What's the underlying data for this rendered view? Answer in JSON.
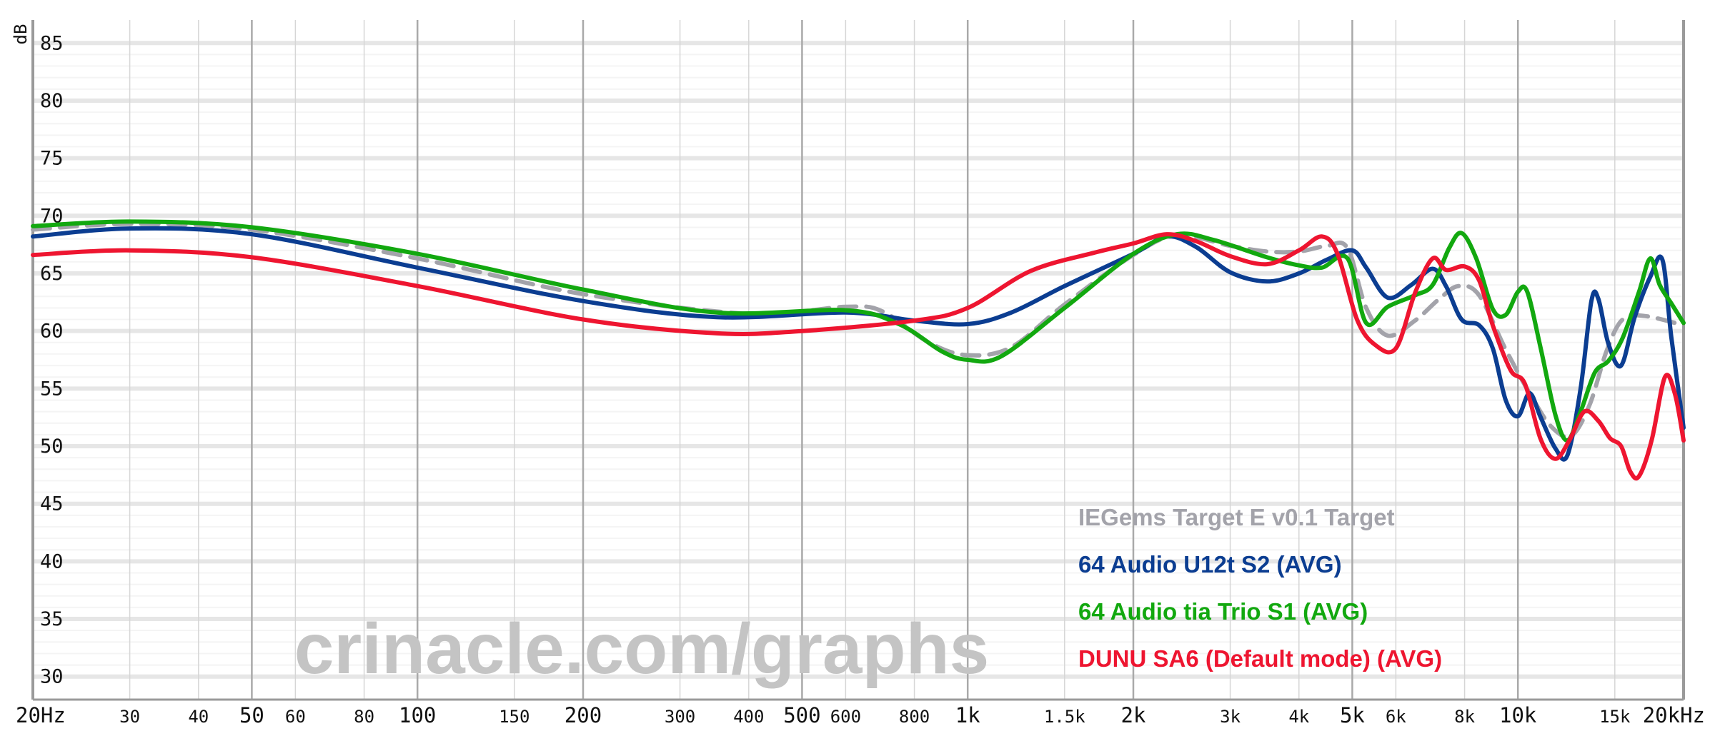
{
  "chart_data": {
    "type": "line",
    "ylabel": "dB",
    "xscale": "log",
    "xlim": [
      20,
      20000
    ],
    "ylim": [
      28,
      87
    ],
    "y_ticks": [
      85,
      80,
      75,
      70,
      65,
      60,
      55,
      50,
      45,
      40,
      35,
      30
    ],
    "x_ticks": [
      {
        "value": 20,
        "label": "20Hz",
        "major": true
      },
      {
        "value": 30,
        "label": "30",
        "major": false
      },
      {
        "value": 40,
        "label": "40",
        "major": false
      },
      {
        "value": 50,
        "label": "50",
        "major": true
      },
      {
        "value": 60,
        "label": "60",
        "major": false
      },
      {
        "value": 80,
        "label": "80",
        "major": false
      },
      {
        "value": 100,
        "label": "100",
        "major": true
      },
      {
        "value": 150,
        "label": "150",
        "major": false
      },
      {
        "value": 200,
        "label": "200",
        "major": true
      },
      {
        "value": 300,
        "label": "300",
        "major": false
      },
      {
        "value": 400,
        "label": "400",
        "major": false
      },
      {
        "value": 500,
        "label": "500",
        "major": true
      },
      {
        "value": 600,
        "label": "600",
        "major": false
      },
      {
        "value": 800,
        "label": "800",
        "major": false
      },
      {
        "value": 1000,
        "label": "1k",
        "major": true
      },
      {
        "value": 1500,
        "label": "1.5k",
        "major": false
      },
      {
        "value": 2000,
        "label": "2k",
        "major": true
      },
      {
        "value": 3000,
        "label": "3k",
        "major": false
      },
      {
        "value": 4000,
        "label": "4k",
        "major": false
      },
      {
        "value": 5000,
        "label": "5k",
        "major": true
      },
      {
        "value": 6000,
        "label": "6k",
        "major": false
      },
      {
        "value": 8000,
        "label": "8k",
        "major": false
      },
      {
        "value": 10000,
        "label": "10k",
        "major": true
      },
      {
        "value": 15000,
        "label": "15k",
        "major": false
      },
      {
        "value": 20000,
        "label": "20kHz",
        "major": true
      }
    ],
    "legend_position": "bottom-right",
    "watermark": "crinacle.com/graphs",
    "series": [
      {
        "name": "IEGems Target E v0.1 Target",
        "color": "#a3a3aa",
        "dashed": true,
        "points": [
          [
            20,
            68.8
          ],
          [
            30,
            69.3
          ],
          [
            50,
            68.8
          ],
          [
            100,
            66.3
          ],
          [
            200,
            63.2
          ],
          [
            400,
            61.5
          ],
          [
            600,
            62.1
          ],
          [
            700,
            61.7
          ],
          [
            850,
            59.0
          ],
          [
            1000,
            57.9
          ],
          [
            1200,
            58.6
          ],
          [
            1500,
            62.3
          ],
          [
            2000,
            66.6
          ],
          [
            2400,
            68.3
          ],
          [
            3000,
            67.4
          ],
          [
            3500,
            66.9
          ],
          [
            4000,
            66.9
          ],
          [
            4500,
            67.4
          ],
          [
            4900,
            67.2
          ],
          [
            5300,
            62.0
          ],
          [
            5800,
            59.6
          ],
          [
            6500,
            60.9
          ],
          [
            7200,
            62.8
          ],
          [
            7800,
            63.9
          ],
          [
            8500,
            63.1
          ],
          [
            9500,
            58.4
          ],
          [
            10500,
            54.6
          ],
          [
            11500,
            51.7
          ],
          [
            12500,
            50.9
          ],
          [
            13500,
            53.6
          ],
          [
            14500,
            58.3
          ],
          [
            15500,
            61.0
          ],
          [
            17000,
            61.3
          ],
          [
            20000,
            60.5
          ]
        ]
      },
      {
        "name": "64 Audio U12t S2 (AVG)",
        "color": "#0b3d91",
        "dashed": false,
        "points": [
          [
            20,
            68.2
          ],
          [
            30,
            68.9
          ],
          [
            50,
            68.4
          ],
          [
            100,
            65.5
          ],
          [
            200,
            62.6
          ],
          [
            350,
            61.2
          ],
          [
            600,
            61.6
          ],
          [
            800,
            60.9
          ],
          [
            1000,
            60.6
          ],
          [
            1200,
            61.6
          ],
          [
            1500,
            63.9
          ],
          [
            2000,
            66.7
          ],
          [
            2300,
            68.2
          ],
          [
            2600,
            67.3
          ],
          [
            3000,
            65.1
          ],
          [
            3500,
            64.3
          ],
          [
            4000,
            65.0
          ],
          [
            4500,
            66.2
          ],
          [
            5000,
            67.0
          ],
          [
            5300,
            65.5
          ],
          [
            5800,
            62.9
          ],
          [
            6400,
            64.0
          ],
          [
            7000,
            65.4
          ],
          [
            7400,
            63.9
          ],
          [
            7900,
            61.0
          ],
          [
            8500,
            60.5
          ],
          [
            9000,
            58.5
          ],
          [
            9500,
            54.0
          ],
          [
            10000,
            52.6
          ],
          [
            10500,
            54.6
          ],
          [
            11000,
            52.5
          ],
          [
            11700,
            49.8
          ],
          [
            12300,
            49.2
          ],
          [
            13000,
            55.0
          ],
          [
            13600,
            62.6
          ],
          [
            14000,
            62.8
          ],
          [
            14600,
            58.9
          ],
          [
            15400,
            57.0
          ],
          [
            16300,
            61.2
          ],
          [
            17400,
            64.7
          ],
          [
            18300,
            66.2
          ],
          [
            19000,
            59.5
          ],
          [
            20000,
            51.6
          ]
        ]
      },
      {
        "name": "64 Audio tia Trio S1 (AVG)",
        "color": "#12a80f",
        "dashed": false,
        "points": [
          [
            20,
            69.1
          ],
          [
            30,
            69.5
          ],
          [
            50,
            69.0
          ],
          [
            100,
            66.7
          ],
          [
            200,
            63.6
          ],
          [
            350,
            61.6
          ],
          [
            600,
            61.8
          ],
          [
            750,
            60.6
          ],
          [
            900,
            58.2
          ],
          [
            1000,
            57.5
          ],
          [
            1150,
            57.8
          ],
          [
            1500,
            62.0
          ],
          [
            2000,
            66.7
          ],
          [
            2400,
            68.4
          ],
          [
            2800,
            67.9
          ],
          [
            3500,
            66.4
          ],
          [
            4000,
            65.7
          ],
          [
            4400,
            65.5
          ],
          [
            4900,
            66.3
          ],
          [
            5300,
            60.7
          ],
          [
            5800,
            62.1
          ],
          [
            6500,
            63.1
          ],
          [
            7000,
            64.0
          ],
          [
            7500,
            67.2
          ],
          [
            7900,
            68.5
          ],
          [
            8400,
            66.3
          ],
          [
            9000,
            61.9
          ],
          [
            9500,
            61.4
          ],
          [
            10000,
            63.4
          ],
          [
            10400,
            63.4
          ],
          [
            11000,
            58.5
          ],
          [
            11700,
            52.7
          ],
          [
            12300,
            50.5
          ],
          [
            13000,
            53.0
          ],
          [
            13800,
            56.4
          ],
          [
            14600,
            57.4
          ],
          [
            15500,
            59.4
          ],
          [
            16600,
            63.4
          ],
          [
            17400,
            66.3
          ],
          [
            18100,
            64.0
          ],
          [
            19000,
            62.4
          ],
          [
            20000,
            60.7
          ]
        ]
      },
      {
        "name": "DUNU SA6 (Default mode) (AVG)",
        "color": "#ee1530",
        "dashed": false,
        "points": [
          [
            20,
            66.6
          ],
          [
            30,
            67.0
          ],
          [
            50,
            66.4
          ],
          [
            100,
            63.9
          ],
          [
            200,
            61.0
          ],
          [
            350,
            59.8
          ],
          [
            500,
            60.0
          ],
          [
            800,
            60.9
          ],
          [
            1000,
            62.0
          ],
          [
            1300,
            65.2
          ],
          [
            1700,
            66.8
          ],
          [
            2000,
            67.6
          ],
          [
            2300,
            68.4
          ],
          [
            2600,
            67.8
          ],
          [
            3000,
            66.5
          ],
          [
            3500,
            65.8
          ],
          [
            4000,
            67.0
          ],
          [
            4400,
            68.2
          ],
          [
            4700,
            66.7
          ],
          [
            5100,
            61.0
          ],
          [
            5500,
            58.8
          ],
          [
            6000,
            58.5
          ],
          [
            6500,
            63.3
          ],
          [
            7000,
            66.3
          ],
          [
            7400,
            65.3
          ],
          [
            8000,
            65.6
          ],
          [
            8500,
            64.4
          ],
          [
            9000,
            60.5
          ],
          [
            9700,
            56.6
          ],
          [
            10300,
            55.4
          ],
          [
            11000,
            50.6
          ],
          [
            11700,
            48.9
          ],
          [
            12400,
            50.5
          ],
          [
            13200,
            53.0
          ],
          [
            14000,
            52.2
          ],
          [
            14700,
            50.7
          ],
          [
            15400,
            50.0
          ],
          [
            16000,
            47.8
          ],
          [
            16600,
            47.4
          ],
          [
            17500,
            50.5
          ],
          [
            18500,
            56.0
          ],
          [
            19300,
            54.5
          ],
          [
            20000,
            50.5
          ]
        ]
      }
    ]
  }
}
